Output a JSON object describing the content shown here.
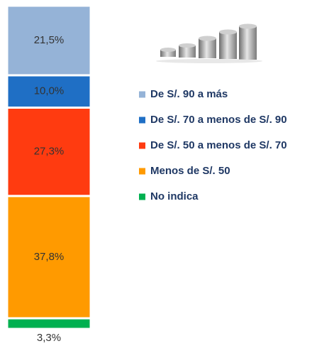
{
  "chart_data": {
    "type": "bar",
    "stacked": true,
    "series": [
      {
        "name": "De S/. 90 a más",
        "color": "#95b3d7",
        "values": [
          21.5
        ],
        "value_labels": [
          "21,5%"
        ]
      },
      {
        "name": "De S/. 70 a menos de S/. 90",
        "color": "#1f6fc5",
        "values": [
          10.0
        ],
        "value_labels": [
          "10,0%"
        ]
      },
      {
        "name": "De S/. 50 a menos de S/. 70",
        "color": "#ff3b10",
        "values": [
          27.3
        ],
        "value_labels": [
          "27,3%"
        ]
      },
      {
        "name": "Menos de S/. 50",
        "color": "#ff9a00",
        "values": [
          37.8
        ],
        "value_labels": [
          "37,8%"
        ]
      },
      {
        "name": "No indica",
        "color": "#00b050",
        "values": [
          3.3
        ],
        "value_labels": [
          "3,3%"
        ]
      }
    ]
  }
}
